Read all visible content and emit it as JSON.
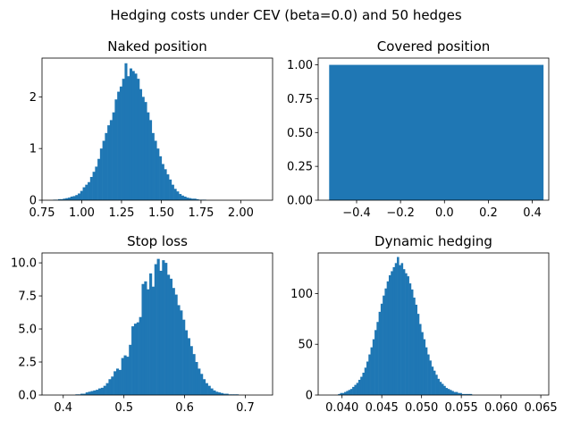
{
  "figure": {
    "suptitle": "Hedging costs under CEV (beta=0.0) and 50 hedges",
    "bar_color": "#1f77b4"
  },
  "chart_data": [
    {
      "type": "bar",
      "title": "Naked position",
      "xlim": [
        0.75,
        2.2
      ],
      "ylim": [
        0,
        2.75
      ],
      "xticks": [
        "0.75",
        "1.00",
        "1.25",
        "1.50",
        "1.75",
        "2.00"
      ],
      "yticks": [
        "0",
        "1",
        "2"
      ],
      "bins": {
        "start": 0.82,
        "width": 0.0155
      },
      "values": [
        0.01,
        0.01,
        0.02,
        0.02,
        0.03,
        0.04,
        0.05,
        0.07,
        0.08,
        0.1,
        0.13,
        0.18,
        0.25,
        0.3,
        0.35,
        0.45,
        0.55,
        0.65,
        0.8,
        1.0,
        1.15,
        1.3,
        1.45,
        1.55,
        1.7,
        1.95,
        2.1,
        2.2,
        2.35,
        2.65,
        2.4,
        2.55,
        2.5,
        2.45,
        2.35,
        2.15,
        2.0,
        1.9,
        1.7,
        1.55,
        1.3,
        1.15,
        1.0,
        0.85,
        0.7,
        0.6,
        0.5,
        0.4,
        0.3,
        0.22,
        0.17,
        0.12,
        0.09,
        0.07,
        0.05,
        0.04,
        0.03,
        0.03,
        0.02,
        0.01,
        0.01,
        0.01
      ]
    },
    {
      "type": "bar",
      "title": "Covered position",
      "xlim": [
        -0.575,
        0.475
      ],
      "ylim": [
        0,
        1.05
      ],
      "xticks": [
        "−0.4",
        "−0.2",
        "0.0",
        "0.2",
        "0.4"
      ],
      "yticks": [
        "0.00",
        "0.25",
        "0.50",
        "0.75",
        "1.00"
      ],
      "bins": {
        "start": -0.525,
        "width": 0.975
      },
      "values": [
        1.0
      ]
    },
    {
      "type": "bar",
      "title": "Stop loss",
      "xlim": [
        0.365,
        0.745
      ],
      "ylim": [
        0,
        10.75
      ],
      "xticks": [
        "0.4",
        "0.5",
        "0.6",
        "0.7"
      ],
      "yticks": [
        "0.0",
        "2.5",
        "5.0",
        "7.5",
        "10.0"
      ],
      "bins": {
        "start": 0.42,
        "width": 0.0042
      },
      "values": [
        0.05,
        0.05,
        0.1,
        0.1,
        0.2,
        0.25,
        0.3,
        0.35,
        0.4,
        0.5,
        0.55,
        0.7,
        0.9,
        1.2,
        1.4,
        1.8,
        2.0,
        1.9,
        2.8,
        3.0,
        2.9,
        3.8,
        5.2,
        5.4,
        5.5,
        5.9,
        8.4,
        8.6,
        8.0,
        9.2,
        8.2,
        9.9,
        10.3,
        9.4,
        10.2,
        10.0,
        9.1,
        8.8,
        8.1,
        7.6,
        6.8,
        6.4,
        5.7,
        4.9,
        4.3,
        3.7,
        3.1,
        2.5,
        2.0,
        1.6,
        1.2,
        0.9,
        0.7,
        0.5,
        0.35,
        0.25,
        0.2,
        0.15,
        0.1,
        0.1,
        0.05,
        0.05,
        0.05,
        0.05
      ]
    },
    {
      "type": "bar",
      "title": "Dynamic hedging",
      "xlim": [
        0.037,
        0.066
      ],
      "ylim": [
        0,
        140
      ],
      "xticks": [
        "0.040",
        "0.045",
        "0.050",
        "0.055",
        "0.060",
        "0.065"
      ],
      "yticks": [
        "0",
        "50",
        "100"
      ],
      "bins": {
        "start": 0.0395,
        "width": 0.000255
      },
      "values": [
        1,
        2,
        2,
        3,
        4,
        5,
        6,
        8,
        10,
        12,
        15,
        18,
        22,
        27,
        33,
        40,
        47,
        55,
        64,
        72,
        82,
        90,
        98,
        105,
        112,
        118,
        122,
        126,
        130,
        136,
        128,
        130,
        124,
        120,
        117,
        110,
        104,
        96,
        89,
        80,
        70,
        62,
        55,
        47,
        40,
        34,
        28,
        24,
        20,
        16,
        13,
        11,
        9,
        7,
        6,
        5,
        4,
        3,
        3,
        2,
        2,
        1,
        1,
        1,
        1,
        1
      ]
    }
  ]
}
